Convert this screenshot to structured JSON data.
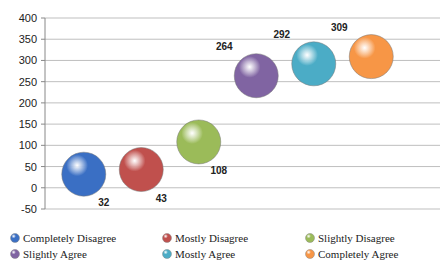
{
  "chart_data": {
    "type": "scatter",
    "categories": [
      "Completely Disagree",
      "Mostly Disagree",
      "Slightly Disagree",
      "Slightly Agree",
      "Mostly Agree",
      "Completely Agree"
    ],
    "values": [
      32,
      43,
      108,
      264,
      292,
      309
    ],
    "colors": [
      "#3a6fc4",
      "#c0504d",
      "#9bbb59",
      "#8064a2",
      "#4bacc6",
      "#f79646"
    ],
    "ylim": [
      -50,
      400
    ],
    "yticks": [
      -50,
      0,
      50,
      100,
      150,
      200,
      250,
      300,
      350,
      400
    ],
    "grid": true,
    "legend": "bottom",
    "data_labels": true,
    "tick_labels": "y",
    "marker": "sphere"
  }
}
